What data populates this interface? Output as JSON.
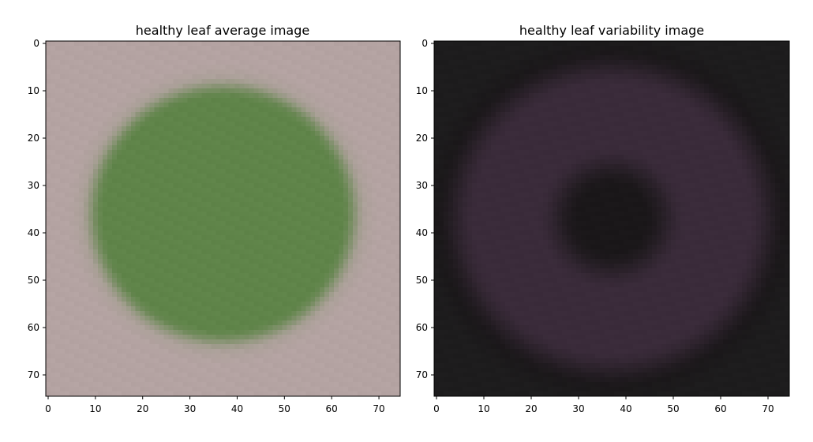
{
  "chart_data": [
    {
      "type": "heatmap",
      "title": "healthy leaf average image",
      "xlabel": "",
      "ylabel": "",
      "grid": false,
      "legend": "none",
      "image_size": [
        75,
        75
      ],
      "xlim": [
        -0.5,
        74.5
      ],
      "ylim": [
        74.5,
        -0.5
      ],
      "x_ticks": [
        0,
        10,
        20,
        30,
        40,
        50,
        60,
        70
      ],
      "y_ticks": [
        0,
        10,
        20,
        30,
        40,
        50,
        60,
        70
      ],
      "tick_labels_x": [
        "0",
        "10",
        "20",
        "30",
        "40",
        "50",
        "60",
        "70"
      ],
      "tick_labels_y": [
        "0",
        "10",
        "20",
        "30",
        "40",
        "50",
        "60",
        "70"
      ],
      "colors": {
        "center": "#5f8449",
        "border": "#b4a3a2",
        "ring": "#8e977a"
      },
      "blob": {
        "center": [
          37,
          36
        ],
        "radius_x": 31,
        "radius_y": 30
      }
    },
    {
      "type": "heatmap",
      "title": "healthy leaf variability image",
      "xlabel": "",
      "ylabel": "",
      "grid": false,
      "legend": "none",
      "image_size": [
        75,
        75
      ],
      "xlim": [
        -0.5,
        74.5
      ],
      "ylim": [
        74.5,
        -0.5
      ],
      "x_ticks": [
        0,
        10,
        20,
        30,
        40,
        50,
        60,
        70
      ],
      "y_ticks": [
        0,
        10,
        20,
        30,
        40,
        50,
        60,
        70
      ],
      "tick_labels_x": [
        "0",
        "10",
        "20",
        "30",
        "40",
        "50",
        "60",
        "70"
      ],
      "tick_labels_y": [
        "0",
        "10",
        "20",
        "30",
        "40",
        "50",
        "60",
        "70"
      ],
      "colors": {
        "center": "#1a1719",
        "ring": "#3a2b3a",
        "border": "#1d1c1d"
      },
      "blob": {
        "center": [
          37,
          37
        ],
        "inner_radius_x": 16,
        "inner_radius_y": 15,
        "outer_radius_x": 34,
        "outer_radius_y": 33
      }
    }
  ]
}
